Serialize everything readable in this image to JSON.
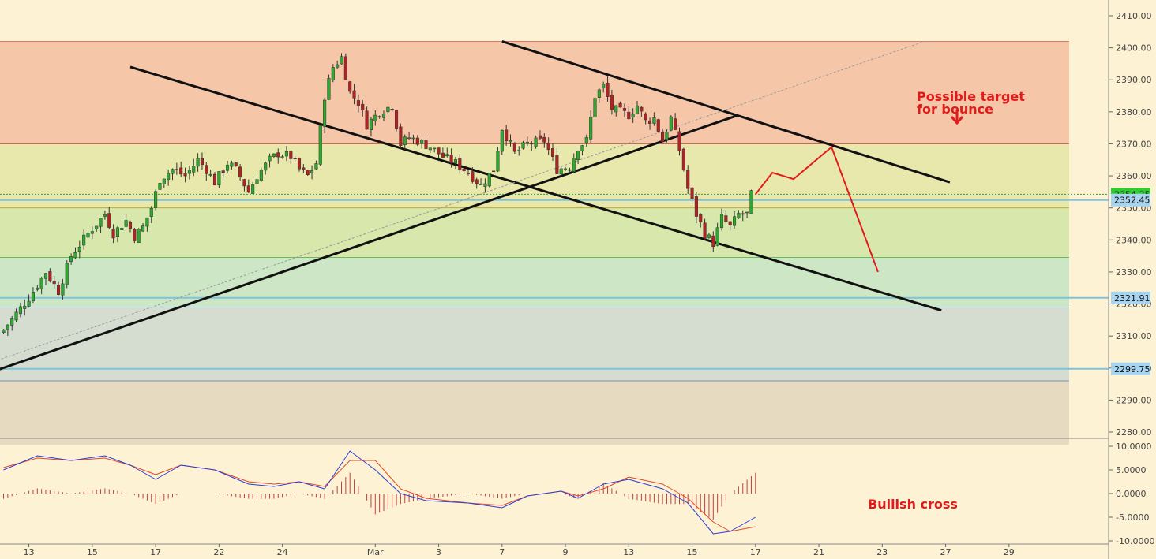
{
  "chart_data": [
    {
      "type": "candlestick",
      "title": "",
      "xlabel": "",
      "ylabel": "",
      "ylim": [
        2276,
        2414
      ],
      "y_ticks": [
        "2280.00",
        "2290.00",
        "2300.00",
        "2310.00",
        "2320.00",
        "2330.00",
        "2340.00",
        "2350.00",
        "2360.00",
        "2370.00",
        "2380.00",
        "2390.00",
        "2400.00",
        "2410.00"
      ],
      "x_ticks": [
        {
          "label": "13",
          "i": 6
        },
        {
          "label": "15",
          "i": 21
        },
        {
          "label": "17",
          "i": 36
        },
        {
          "label": "22",
          "i": 51
        },
        {
          "label": "24",
          "i": 66
        },
        {
          "label": "Mar",
          "i": 88
        },
        {
          "label": "3",
          "i": 103
        },
        {
          "label": "7",
          "i": 118
        },
        {
          "label": "9",
          "i": 133
        },
        {
          "label": "13",
          "i": 148
        },
        {
          "label": "15",
          "i": 163
        },
        {
          "label": "17",
          "i": 178
        },
        {
          "label": "21",
          "i": 193
        },
        {
          "label": "23",
          "i": 208
        },
        {
          "label": "27",
          "i": 223
        },
        {
          "label": "29",
          "i": 238
        }
      ],
      "price_tags": [
        {
          "label": "2354.25",
          "value": 2354.25,
          "color": "#2ecc2e"
        },
        {
          "label": "2352.45",
          "value": 2352.45,
          "color": "#a8d4f0"
        },
        {
          "label": "2321.91",
          "value": 2321.91,
          "color": "#a8d4f0"
        },
        {
          "label": "2299.75",
          "value": 2299.75,
          "color": "#a8d4f0"
        }
      ],
      "fib_zones": [
        {
          "from": 2370,
          "to": 2402,
          "color": "#f5c6a8"
        },
        {
          "from": 2350,
          "to": 2370,
          "color": "#e8e8ad"
        },
        {
          "from": 2334.5,
          "to": 2350,
          "color": "#d8e8ad"
        },
        {
          "from": 2319,
          "to": 2334.5,
          "color": "#cde6c5"
        },
        {
          "from": 2296,
          "to": 2319,
          "color": "#d5ddd0"
        },
        {
          "from": 2276,
          "to": 2296,
          "color": "#e6dac0"
        }
      ],
      "fib_lines": [
        2402,
        2370,
        2350,
        2334.5,
        2319,
        2296
      ],
      "support_lines": [
        2352.45,
        2321.91,
        2299.75
      ],
      "annotations": [
        "Possible target",
        "for bounce",
        "Bullish cross"
      ],
      "waypoints": [
        {
          "i": 0,
          "c": 2312
        },
        {
          "i": 3,
          "c": 2317
        },
        {
          "i": 6,
          "c": 2322
        },
        {
          "i": 10,
          "c": 2330
        },
        {
          "i": 13,
          "c": 2324
        },
        {
          "i": 16,
          "c": 2335
        },
        {
          "i": 20,
          "c": 2342
        },
        {
          "i": 24,
          "c": 2348
        },
        {
          "i": 26,
          "c": 2342
        },
        {
          "i": 29,
          "c": 2346
        },
        {
          "i": 31,
          "c": 2341
        },
        {
          "i": 33,
          "c": 2344
        },
        {
          "i": 35,
          "c": 2350
        },
        {
          "i": 37,
          "c": 2359
        },
        {
          "i": 40,
          "c": 2362
        },
        {
          "i": 43,
          "c": 2360
        },
        {
          "i": 46,
          "c": 2365
        },
        {
          "i": 48,
          "c": 2362
        },
        {
          "i": 50,
          "c": 2358
        },
        {
          "i": 53,
          "c": 2364
        },
        {
          "i": 55,
          "c": 2362
        },
        {
          "i": 58,
          "c": 2355
        },
        {
          "i": 60,
          "c": 2360
        },
        {
          "i": 63,
          "c": 2365
        },
        {
          "i": 65,
          "c": 2367
        },
        {
          "i": 68,
          "c": 2366
        },
        {
          "i": 70,
          "c": 2362
        },
        {
          "i": 72,
          "c": 2360
        },
        {
          "i": 74,
          "c": 2364
        },
        {
          "i": 76,
          "c": 2385
        },
        {
          "i": 78,
          "c": 2394
        },
        {
          "i": 80,
          "c": 2397
        },
        {
          "i": 82,
          "c": 2386
        },
        {
          "i": 84,
          "c": 2383
        },
        {
          "i": 86,
          "c": 2376
        },
        {
          "i": 89,
          "c": 2380
        },
        {
          "i": 92,
          "c": 2382
        },
        {
          "i": 94,
          "c": 2370
        },
        {
          "i": 96,
          "c": 2372
        },
        {
          "i": 98,
          "c": 2371
        },
        {
          "i": 101,
          "c": 2369
        },
        {
          "i": 104,
          "c": 2366
        },
        {
          "i": 107,
          "c": 2364
        },
        {
          "i": 110,
          "c": 2361
        },
        {
          "i": 113,
          "c": 2357
        },
        {
          "i": 116,
          "c": 2362
        },
        {
          "i": 118,
          "c": 2375
        },
        {
          "i": 121,
          "c": 2367
        },
        {
          "i": 124,
          "c": 2370
        },
        {
          "i": 128,
          "c": 2371
        },
        {
          "i": 131,
          "c": 2362
        },
        {
          "i": 134,
          "c": 2363
        },
        {
          "i": 136,
          "c": 2369
        },
        {
          "i": 138,
          "c": 2371
        },
        {
          "i": 140,
          "c": 2385
        },
        {
          "i": 142,
          "c": 2388
        },
        {
          "i": 144,
          "c": 2381
        },
        {
          "i": 146,
          "c": 2380
        },
        {
          "i": 148,
          "c": 2379
        },
        {
          "i": 150,
          "c": 2382
        },
        {
          "i": 152,
          "c": 2377
        },
        {
          "i": 154,
          "c": 2378
        },
        {
          "i": 156,
          "c": 2371
        },
        {
          "i": 158,
          "c": 2378
        },
        {
          "i": 160,
          "c": 2368
        },
        {
          "i": 162,
          "c": 2356
        },
        {
          "i": 164,
          "c": 2348
        },
        {
          "i": 166,
          "c": 2342
        },
        {
          "i": 168,
          "c": 2339
        },
        {
          "i": 170,
          "c": 2347
        },
        {
          "i": 172,
          "c": 2344
        },
        {
          "i": 174,
          "c": 2348
        },
        {
          "i": 176,
          "c": 2348
        },
        {
          "i": 177,
          "c": 2354
        }
      ],
      "projection": [
        {
          "i": 178,
          "value": 2354.25
        },
        {
          "i": 182,
          "value": 2361
        },
        {
          "i": 187,
          "value": 2359
        },
        {
          "i": 196,
          "value": 2369
        },
        {
          "i": 207,
          "value": 2330
        }
      ],
      "trend_lines": [
        {
          "name": "rising",
          "from": {
            "i": -20,
            "value": 2291
          },
          "to": {
            "i": 174,
            "value": 2379
          }
        },
        {
          "name": "upper-falling",
          "from": {
            "i": 118,
            "value": 2402
          },
          "to": {
            "i": 224,
            "value": 2358
          }
        },
        {
          "name": "lower-falling",
          "from": {
            "i": 30,
            "value": 2394
          },
          "to": {
            "i": 222,
            "value": 2318
          }
        },
        {
          "name": "channel-dashed",
          "from": {
            "i": -20,
            "value": 2294
          },
          "to": {
            "i": 218,
            "value": 2402
          }
        }
      ]
    },
    {
      "type": "macd",
      "title": "",
      "ylim": [
        -10,
        10
      ],
      "y_ticks": [
        "10.0000",
        "5.0000",
        "0.0000",
        "-5.0000",
        "-10.0000"
      ],
      "macd_waypoints": [
        {
          "i": 0,
          "v": 5
        },
        {
          "i": 8,
          "v": 8
        },
        {
          "i": 16,
          "v": 7
        },
        {
          "i": 24,
          "v": 8
        },
        {
          "i": 30,
          "v": 6
        },
        {
          "i": 36,
          "v": 3
        },
        {
          "i": 42,
          "v": 6
        },
        {
          "i": 50,
          "v": 5
        },
        {
          "i": 58,
          "v": 2
        },
        {
          "i": 64,
          "v": 1.5
        },
        {
          "i": 70,
          "v": 2.5
        },
        {
          "i": 76,
          "v": 1
        },
        {
          "i": 82,
          "v": 9
        },
        {
          "i": 88,
          "v": 5
        },
        {
          "i": 94,
          "v": 0
        },
        {
          "i": 100,
          "v": -1.5
        },
        {
          "i": 110,
          "v": -2
        },
        {
          "i": 118,
          "v": -3
        },
        {
          "i": 124,
          "v": -0.5
        },
        {
          "i": 132,
          "v": 0.5
        },
        {
          "i": 136,
          "v": -1
        },
        {
          "i": 142,
          "v": 2
        },
        {
          "i": 148,
          "v": 3
        },
        {
          "i": 156,
          "v": 1
        },
        {
          "i": 162,
          "v": -2
        },
        {
          "i": 168,
          "v": -8.5
        },
        {
          "i": 172,
          "v": -8
        },
        {
          "i": 178,
          "v": -5
        }
      ],
      "signal_waypoints": [
        {
          "i": 0,
          "v": 5.5
        },
        {
          "i": 8,
          "v": 7.5
        },
        {
          "i": 16,
          "v": 7
        },
        {
          "i": 24,
          "v": 7.5
        },
        {
          "i": 30,
          "v": 6
        },
        {
          "i": 36,
          "v": 4
        },
        {
          "i": 42,
          "v": 6
        },
        {
          "i": 50,
          "v": 5
        },
        {
          "i": 58,
          "v": 2.5
        },
        {
          "i": 64,
          "v": 2
        },
        {
          "i": 70,
          "v": 2.5
        },
        {
          "i": 76,
          "v": 1.5
        },
        {
          "i": 82,
          "v": 7
        },
        {
          "i": 88,
          "v": 7
        },
        {
          "i": 94,
          "v": 1
        },
        {
          "i": 100,
          "v": -1
        },
        {
          "i": 110,
          "v": -2
        },
        {
          "i": 118,
          "v": -2.5
        },
        {
          "i": 124,
          "v": -0.5
        },
        {
          "i": 132,
          "v": 0.5
        },
        {
          "i": 136,
          "v": -0.5
        },
        {
          "i": 142,
          "v": 1
        },
        {
          "i": 148,
          "v": 3.5
        },
        {
          "i": 156,
          "v": 2
        },
        {
          "i": 162,
          "v": -1
        },
        {
          "i": 168,
          "v": -6
        },
        {
          "i": 172,
          "v": -8
        },
        {
          "i": 178,
          "v": -7
        }
      ]
    }
  ],
  "colors": {
    "background": "#fdf2d4",
    "up_candle": "#2fa82f",
    "down_candle": "#b32222",
    "macd_line": "#2b3fd6",
    "signal_line": "#e04a2a",
    "annotation": "#e31a1a",
    "trend": "#111111"
  }
}
